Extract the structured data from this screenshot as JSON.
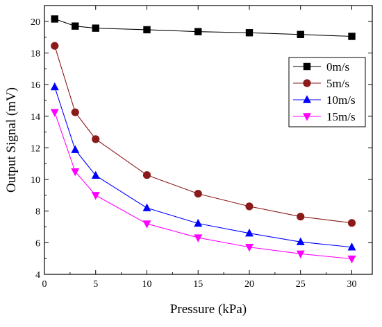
{
  "chart_data": {
    "type": "line",
    "title": "",
    "xlabel": "Pressure  (kPa)",
    "ylabel": "Output Signal  (mV)",
    "xlim": [
      0,
      32
    ],
    "ylim": [
      4,
      21
    ],
    "xticks": [
      0,
      5,
      10,
      15,
      20,
      25,
      30
    ],
    "yticks": [
      4,
      6,
      8,
      10,
      12,
      14,
      16,
      18,
      20
    ],
    "grid": false,
    "legend_position": "top-right",
    "x": [
      1,
      3,
      5,
      10,
      15,
      20,
      25,
      30
    ],
    "series": [
      {
        "name": "0m/s",
        "color": "#000000",
        "marker": "square",
        "values": [
          20.15,
          19.7,
          19.57,
          19.47,
          19.35,
          19.28,
          19.17,
          19.05
        ]
      },
      {
        "name": "5m/s",
        "color": "#8b1a1a",
        "marker": "circle",
        "values": [
          18.45,
          14.25,
          12.55,
          10.28,
          9.1,
          8.3,
          7.65,
          7.25
        ]
      },
      {
        "name": "10m/s",
        "color": "#0000ff",
        "marker": "triangle-up",
        "values": [
          15.85,
          11.88,
          10.25,
          8.2,
          7.22,
          6.6,
          6.05,
          5.72
        ]
      },
      {
        "name": "15m/s",
        "color": "#ff00ff",
        "marker": "triangle-down",
        "values": [
          14.25,
          10.5,
          9.0,
          7.2,
          6.32,
          5.72,
          5.3,
          4.98
        ]
      }
    ]
  }
}
